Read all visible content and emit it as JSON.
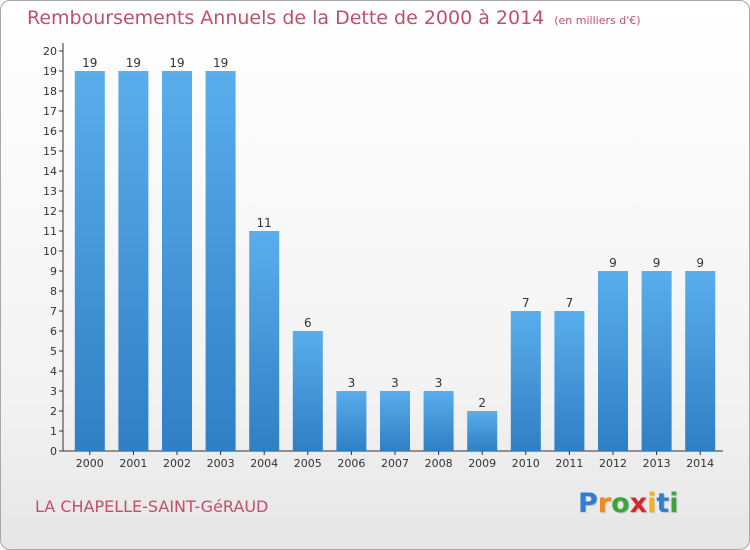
{
  "chart_data": {
    "type": "bar",
    "title": "Remboursements Annuels de la Dette de 2000 à 2014",
    "unit_note": "(en milliers d'€)",
    "categories": [
      "2000",
      "2001",
      "2002",
      "2003",
      "2004",
      "2005",
      "2006",
      "2007",
      "2008",
      "2009",
      "2010",
      "2011",
      "2012",
      "2013",
      "2014"
    ],
    "values": [
      19,
      19,
      19,
      19,
      11,
      6,
      3,
      3,
      3,
      2,
      7,
      7,
      9,
      9,
      9
    ],
    "ylim": [
      0,
      20
    ],
    "yticks": [
      0,
      1,
      2,
      3,
      4,
      5,
      6,
      7,
      8,
      9,
      10,
      11,
      12,
      13,
      14,
      15,
      16,
      17,
      18,
      19,
      20
    ],
    "xlabel": "",
    "ylabel": "",
    "grid": false,
    "bar_color": "#4a9de0"
  },
  "commune": "LA CHAPELLE-SAINT-GéRAUD",
  "logo": {
    "letters": [
      "P",
      "r",
      "o",
      "x",
      "i",
      "t",
      "i"
    ],
    "colors": [
      "#2f7fd1",
      "#f28a1a",
      "#3aa63a",
      "#d9262c",
      "#f2b318",
      "#2f7fd1",
      "#3aa63a"
    ]
  }
}
